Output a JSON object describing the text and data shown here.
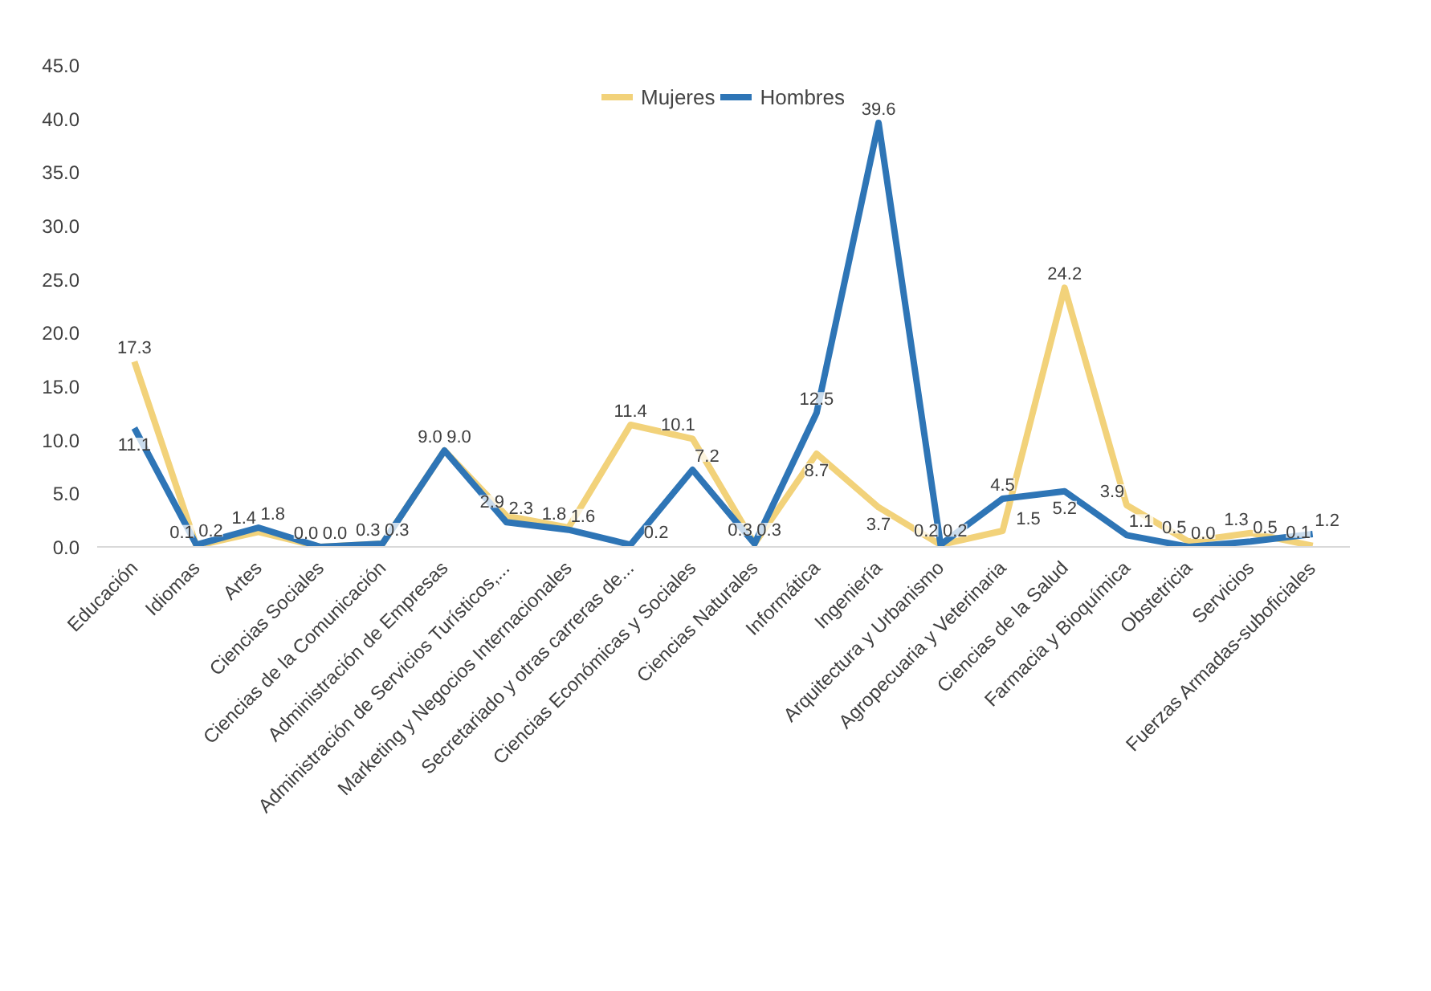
{
  "chart_data": {
    "type": "line",
    "categories": [
      "Educación",
      "Idiomas",
      "Artes",
      "Ciencias Sociales",
      "Ciencias de la Comunicación",
      "Administración de Empresas",
      "Administración de Servicios Turísticos,...",
      "Marketing y Negocios Internacionales",
      "Secretariado y otras carreras de...",
      "Ciencias Económicas y Sociales",
      "Ciencias Naturales",
      "Informática",
      "Ingeniería",
      "Arquitectura y Urbanismo",
      "Agropecuaria y Veterinaria",
      "Ciencias de la Salud",
      "Farmacia y Bioquímica",
      "Obstetricia",
      "Servicios",
      "Fuerzas Armadas-suboficiales"
    ],
    "series": [
      {
        "name": "Mujeres",
        "color": "#f2d27a",
        "values": [
          17.3,
          0.1,
          1.4,
          0.0,
          0.3,
          9.0,
          2.9,
          1.8,
          11.4,
          10.1,
          0.3,
          8.7,
          3.7,
          0.2,
          1.5,
          24.2,
          3.9,
          0.5,
          1.3,
          0.1
        ],
        "value_labels": [
          "17.3",
          "0.1",
          "1.4",
          "0.0",
          "0.3",
          "9.0",
          "2.9",
          "1.8",
          "11.4",
          "10.1",
          "0.3",
          "8.7",
          "3.7",
          "0.2",
          "1.5",
          "24.2",
          "3.9",
          "0.5",
          "1.3",
          "0.1"
        ]
      },
      {
        "name": "Hombres",
        "color": "#2e75b6",
        "values": [
          11.1,
          0.2,
          1.8,
          0.0,
          0.3,
          9.0,
          2.3,
          1.6,
          0.2,
          7.2,
          0.3,
          12.5,
          39.6,
          0.2,
          4.5,
          5.2,
          1.1,
          0.0,
          0.5,
          1.2
        ],
        "value_labels": [
          "11.1",
          "0.2",
          "1.8",
          "0.0",
          "0.3",
          "9.0",
          "2.3",
          "1.6",
          "0.2",
          "7.2",
          "0.3",
          "12.5",
          "39.6",
          "0.2",
          "4.5",
          "5.2",
          "1.1",
          "0.0",
          "0.5",
          "1.2"
        ]
      }
    ],
    "ylim": [
      0,
      45
    ],
    "yticks": [
      {
        "value": 0,
        "label": "0.0"
      },
      {
        "value": 5,
        "label": "5.0"
      },
      {
        "value": 10,
        "label": "10.0"
      },
      {
        "value": 15,
        "label": "15.0"
      },
      {
        "value": 20,
        "label": "20.0"
      },
      {
        "value": 25,
        "label": "25.0"
      },
      {
        "value": 30,
        "label": "30.0"
      },
      {
        "value": 35,
        "label": "35.0"
      },
      {
        "value": 40,
        "label": "40.0"
      },
      {
        "value": 45,
        "label": "45.0"
      }
    ],
    "legend": "top",
    "grid": false,
    "marker": "none",
    "line_style": "solid"
  }
}
